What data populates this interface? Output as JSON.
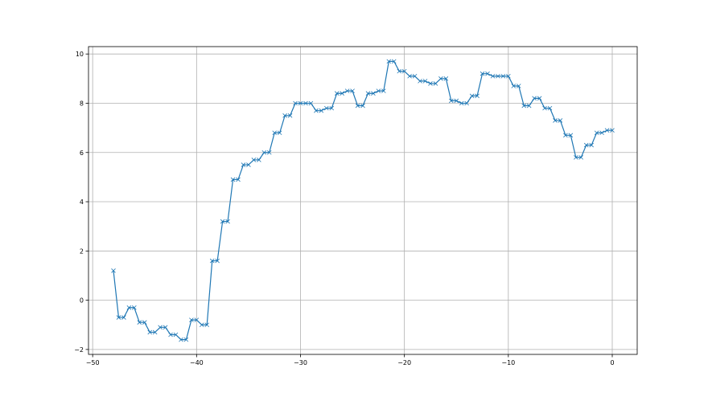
{
  "chart_data": {
    "type": "line",
    "title": "",
    "xlabel": "",
    "ylabel": "",
    "xlim": [
      -50.4,
      2.4
    ],
    "ylim": [
      -2.2,
      10.3
    ],
    "xticks": [
      -50,
      -40,
      -30,
      -20,
      -10,
      0
    ],
    "yticks": [
      -2,
      0,
      2,
      4,
      6,
      8,
      10
    ],
    "grid": true,
    "marker": "x",
    "color": "#1f77b4",
    "series": [
      {
        "x": [
          -48,
          -47.5,
          -47,
          -46.5,
          -46,
          -45.5,
          -45,
          -44.5,
          -44,
          -43.5,
          -43,
          -42.5,
          -42,
          -41.5,
          -41,
          -40.5,
          -40,
          -39.5,
          -39,
          -38.5,
          -38,
          -37.5,
          -37,
          -36.5,
          -36,
          -35.5,
          -35,
          -34.5,
          -34,
          -33.5,
          -33,
          -32.5,
          -32,
          -31.5,
          -31,
          -30.5,
          -30,
          -29.5,
          -29,
          -28.5,
          -28,
          -27.5,
          -27,
          -26.5,
          -26,
          -25.5,
          -25,
          -24.5,
          -24,
          -23.5,
          -23,
          -22.5,
          -22,
          -21.5,
          -21,
          -20.5,
          -20,
          -19.5,
          -19,
          -18.5,
          -18,
          -17.5,
          -17,
          -16.5,
          -16,
          -15.5,
          -15,
          -14.5,
          -14,
          -13.5,
          -13,
          -12.5,
          -12,
          -11.5,
          -11,
          -10.5,
          -10,
          -9.5,
          -9,
          -8.5,
          -8,
          -7.5,
          -7,
          -6.5,
          -6,
          -5.5,
          -5,
          -4.5,
          -4,
          -3.5,
          -3,
          -2.5,
          -2,
          -1.5,
          -1,
          -0.5,
          0
        ],
        "y": [
          1.2,
          -0.7,
          -0.7,
          -0.3,
          -0.3,
          -0.9,
          -0.9,
          -1.3,
          -1.3,
          -1.1,
          -1.1,
          -1.4,
          -1.4,
          -1.6,
          -1.6,
          -0.8,
          -0.8,
          -1.0,
          -1.0,
          1.6,
          1.6,
          3.2,
          3.2,
          4.9,
          4.9,
          5.5,
          5.5,
          5.7,
          5.7,
          6.0,
          6.0,
          6.8,
          6.8,
          7.5,
          7.5,
          8.0,
          8.0,
          8.0,
          8.0,
          7.7,
          7.7,
          7.8,
          7.8,
          8.4,
          8.4,
          8.5,
          8.5,
          7.9,
          7.9,
          8.4,
          8.4,
          8.5,
          8.5,
          9.7,
          9.7,
          9.3,
          9.3,
          9.1,
          9.1,
          8.9,
          8.9,
          8.8,
          8.8,
          9.0,
          9.0,
          8.1,
          8.1,
          8.0,
          8.0,
          8.3,
          8.3,
          9.2,
          9.2,
          9.1,
          9.1,
          9.1,
          9.1,
          8.7,
          8.7,
          7.9,
          7.9,
          8.2,
          8.2,
          7.8,
          7.8,
          7.3,
          7.3,
          6.7,
          6.7,
          5.8,
          5.8,
          6.3,
          6.3,
          6.8,
          6.8,
          6.9,
          6.9
        ]
      }
    ]
  }
}
